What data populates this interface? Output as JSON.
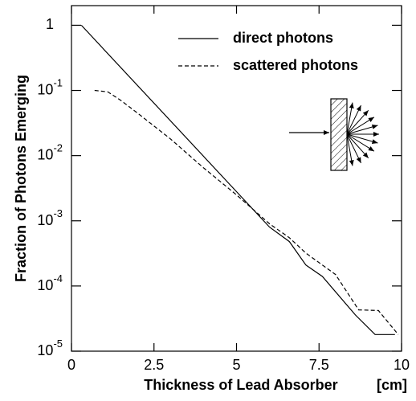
{
  "chart_data": {
    "type": "line",
    "x_label": "Thickness of Lead Absorber",
    "x_unit": "[cm]",
    "y_label": "Fraction of Photons Emerging",
    "log_y": true,
    "xlim": [
      0,
      10
    ],
    "ylim": [
      1e-05,
      2
    ],
    "xticks": [
      0,
      2.5,
      5,
      7.5,
      10
    ],
    "yticks": [
      1,
      {
        "value": 0.1,
        "label": "10-1"
      },
      {
        "value": 0.01,
        "label": "10-2"
      },
      {
        "value": 0.001,
        "label": "10-3"
      },
      {
        "value": 0.0001,
        "label": "10-4"
      },
      {
        "value": 1e-05,
        "label": "10-5"
      }
    ],
    "series": [
      {
        "name": "direct photons",
        "color": "#000000",
        "dash": "solid",
        "x": [
          0.3,
          5,
          6,
          6.6,
          7.1,
          7.6,
          8.6,
          9.2,
          9.8
        ],
        "values": [
          1,
          0.0028,
          0.0008,
          0.00048,
          0.00021,
          0.00014,
          3.6e-05,
          1.8e-05,
          1.8e-05
        ]
      },
      {
        "name": "scattered photons",
        "color": "#000000",
        "dash": "dashed",
        "x": [
          0.7,
          1.1,
          1.5,
          2,
          3,
          4,
          5,
          6,
          6.6,
          7.1,
          8,
          8.7,
          9.3,
          9.9
        ],
        "values": [
          0.1,
          0.095,
          0.07,
          0.045,
          0.018,
          0.0065,
          0.0025,
          0.0009,
          0.00055,
          0.00032,
          0.00015,
          4.3e-05,
          4.2e-05,
          1.8e-05
        ]
      }
    ]
  }
}
